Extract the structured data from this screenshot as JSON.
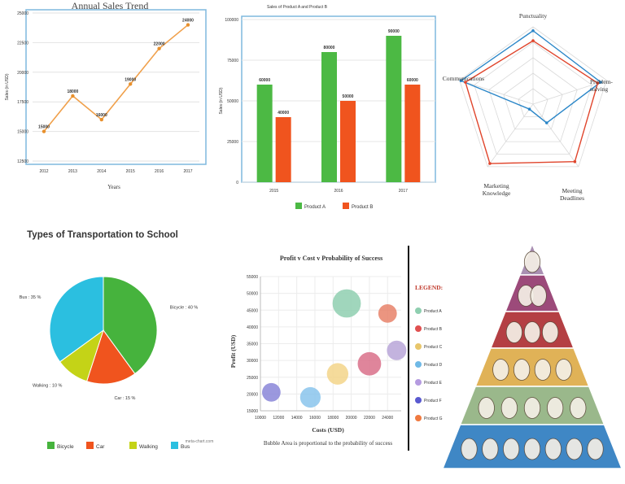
{
  "chart_data": [
    {
      "type": "line",
      "title": "Annual Sales Trend",
      "xlabel": "Years",
      "ylabel": "Sales (in USD)",
      "categories": [
        "2012",
        "2013",
        "2014",
        "2015",
        "2016",
        "2017"
      ],
      "values": [
        15000,
        18000,
        16000,
        19000,
        22000,
        24000
      ],
      "data_labels": [
        "15000",
        "18000",
        "16000",
        "19000",
        "22000",
        "24000"
      ],
      "yticks": [
        "12500",
        "15000",
        "17500",
        "20000",
        "22500",
        "25000"
      ],
      "ylim": [
        12500,
        25000
      ],
      "grid": true,
      "colors": {
        "line": "#f0a04b",
        "marker": "#e8902c"
      }
    },
    {
      "type": "bar",
      "title": "Sales of Product A and Product B",
      "ylabel": "Sales (in USD)",
      "categories": [
        "2015",
        "2016",
        "2017"
      ],
      "series": [
        {
          "name": "Product A",
          "values": [
            60000,
            80000,
            90000
          ],
          "labels": [
            "60000",
            "80000",
            "90000"
          ],
          "color": "#4cb944"
        },
        {
          "name": "Product B",
          "values": [
            40000,
            50000,
            60000
          ],
          "labels": [
            "40000",
            "50000",
            "60000"
          ],
          "color": "#f0541e"
        }
      ],
      "yticks": [
        "0",
        "25000",
        "50000",
        "75000",
        "100000"
      ],
      "ylim": [
        0,
        100000
      ],
      "legend": "bottom",
      "grid": true
    },
    {
      "type": "radar",
      "axes": [
        "Punctuality",
        "Problem-solving",
        "Meeting Deadlines",
        "Marketing Knowledge",
        "Communications"
      ],
      "series": [
        {
          "values": [
            0.95,
            0.92,
            0.3,
            0.08,
            0.98
          ],
          "color": "#2a86c8"
        },
        {
          "values": [
            0.82,
            0.88,
            0.92,
            0.95,
            0.92
          ],
          "color": "#e0452c"
        }
      ],
      "grid": true
    },
    {
      "type": "pie",
      "title": "Types of Transportation to School",
      "slices": [
        {
          "name": "Bicycle",
          "value": 40,
          "label": "Bicycle : 40 %",
          "color": "#46b33d"
        },
        {
          "name": "Car",
          "value": 15,
          "label": "Car : 15 %",
          "color": "#f0541e"
        },
        {
          "name": "Walking",
          "value": 10,
          "label": "Walking : 10 %",
          "color": "#c4d317"
        },
        {
          "name": "Bus",
          "value": 35,
          "label": "Bus : 35 %",
          "color": "#2bbfe0"
        }
      ],
      "legend": "bottom",
      "credit": "meta-chart.com"
    },
    {
      "type": "scatter",
      "title": "Profit v Cost v Probability of Success",
      "xlabel": "Costs (USD)",
      "ylabel": "Profit (USD)",
      "caption": "Bubble Area is proportional to the probability of success",
      "legend_title": "LEGEND:",
      "xticks": [
        "10000",
        "12000",
        "14000",
        "16000",
        "18000",
        "20000",
        "22000",
        "24000"
      ],
      "yticks": [
        "15000",
        "20000",
        "25000",
        "30000",
        "35000",
        "40000",
        "45000",
        "50000",
        "55000"
      ],
      "xlim": [
        10000,
        25500
      ],
      "ylim": [
        15000,
        55000
      ],
      "legend": "right",
      "series": [
        {
          "name": "Product A",
          "x": 19500,
          "y": 47000,
          "size": 0.95,
          "color": "#8fcfb0"
        },
        {
          "name": "Product B",
          "x": 24000,
          "y": 44000,
          "size": 0.45,
          "color": "#e8826a"
        },
        {
          "name": "Product C",
          "x": 18500,
          "y": 26000,
          "size": 0.6,
          "color": "#f3d58a"
        },
        {
          "name": "Product D",
          "x": 15500,
          "y": 19000,
          "size": 0.55,
          "color": "#8ac4ec"
        },
        {
          "name": "Product E",
          "x": 22000,
          "y": 29000,
          "size": 0.7,
          "color": "#d9708a"
        },
        {
          "name": "Product F",
          "x": 25000,
          "y": 33000,
          "size": 0.5,
          "color": "#b9a6d8"
        },
        {
          "name": "Product G",
          "x": 11200,
          "y": 20500,
          "size": 0.45,
          "color": "#8a86d8"
        }
      ],
      "legend_colors": [
        "#8fcfb0",
        "#e05050",
        "#e8c66b",
        "#6fb9e6",
        "#b59be0",
        "#5a5ad0",
        "#f07a40"
      ]
    },
    {
      "type": "pyramid",
      "levels": [
        {
          "icons": [
            "salt-shaker-icon"
          ],
          "color": "#a98fb2"
        },
        {
          "icons": [
            "oil-bottle-icon",
            "honey-icon"
          ],
          "color": "#9c4a7a"
        },
        {
          "icons": [
            "steak-icon",
            "egg-icon",
            "nuts-icon"
          ],
          "color": "#b43f43"
        },
        {
          "icons": [
            "milk-icon",
            "cheese-icon",
            "yogurt-icon",
            "cheese-icon"
          ],
          "color": "#e0b257"
        },
        {
          "icons": [
            "cereal-icon",
            "bread-icon",
            "bread-icon",
            "rice-icon",
            "pasta-icon"
          ],
          "color": "#9ab88b"
        },
        {
          "icons": [
            "tomato-icon",
            "broccoli-icon",
            "pepper-icon",
            "carrot-icon",
            "eggplant-icon",
            "banana-icon",
            "cherry-icon"
          ],
          "color": "#3f87c5"
        }
      ]
    }
  ]
}
